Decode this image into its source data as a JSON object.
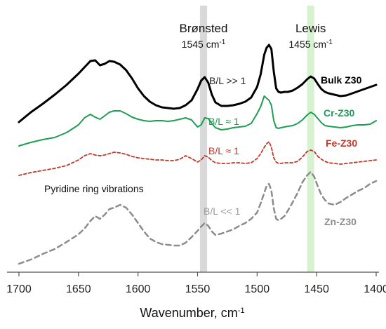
{
  "chart_data": {
    "type": "line",
    "xlabel": "Wavenumber, cm",
    "xlabel_sup": "-1",
    "xlim": [
      1700,
      1400
    ],
    "x_ticks": [
      1700,
      1650,
      1600,
      1550,
      1500,
      1450,
      1400
    ],
    "x_tick_labels": [
      "1700",
      "1650",
      "1600",
      "1550",
      "1500",
      "1450",
      "1400"
    ],
    "bands": [
      {
        "title": "Brønsted",
        "sub": "1545 cm",
        "sup": "-1",
        "center": 1545,
        "width": 6,
        "color": "#d9d9d9"
      },
      {
        "title": "Lewis",
        "sub": "1455 cm",
        "sup": "-1",
        "center": 1455,
        "width": 6,
        "color": "#d6f2d0"
      }
    ],
    "note": "Pyridine ring vibrations",
    "series": [
      {
        "name": "Bulk Z30",
        "ratio": "B/L >> 1",
        "color": "#000000",
        "dash": "",
        "width": 3,
        "ratio_color": "#222222",
        "x": [
          1700,
          1690,
          1680,
          1670,
          1660,
          1650,
          1645,
          1640,
          1636,
          1632,
          1628,
          1624,
          1620,
          1615,
          1610,
          1605,
          1600,
          1595,
          1590,
          1585,
          1580,
          1575,
          1570,
          1565,
          1560,
          1555,
          1550,
          1547,
          1544,
          1541,
          1538,
          1535,
          1530,
          1525,
          1520,
          1515,
          1510,
          1505,
          1500,
          1497,
          1494,
          1492,
          1490,
          1488,
          1486,
          1484,
          1482,
          1480,
          1477,
          1474,
          1470,
          1466,
          1462,
          1458,
          1455,
          1452,
          1449,
          1446,
          1443,
          1440,
          1435,
          1430,
          1425,
          1420,
          1415,
          1410,
          1405,
          1400
        ],
        "y": [
          174,
          160,
          148,
          135,
          121,
          105,
          96,
          87,
          86,
          93,
          91,
          87,
          88,
          92,
          100,
          112,
          126,
          137,
          145,
          150,
          153,
          154,
          155,
          154,
          150,
          143,
          127,
          115,
          110,
          118,
          135,
          146,
          151,
          151,
          150,
          148,
          145,
          139,
          124,
          106,
          78,
          68,
          64,
          70,
          102,
          126,
          131,
          132,
          131,
          131,
          129,
          125,
          120,
          113,
          109,
          112,
          120,
          127,
          131,
          133,
          135,
          137,
          136,
          133,
          130,
          127,
          124,
          121
        ]
      },
      {
        "name": "Cr-Z30",
        "ratio": "B/L ≈ 1",
        "color": "#1f9d55",
        "dash": "",
        "width": 2,
        "ratio_color": "#1f9d55",
        "x": [
          1700,
          1690,
          1680,
          1670,
          1660,
          1650,
          1645,
          1640,
          1636,
          1632,
          1628,
          1624,
          1620,
          1615,
          1610,
          1605,
          1600,
          1595,
          1590,
          1585,
          1580,
          1575,
          1570,
          1565,
          1560,
          1555,
          1550,
          1547,
          1544,
          1541,
          1538,
          1535,
          1530,
          1525,
          1520,
          1515,
          1510,
          1505,
          1500,
          1497,
          1494,
          1492,
          1490,
          1488,
          1486,
          1484,
          1482,
          1480,
          1477,
          1474,
          1470,
          1466,
          1462,
          1458,
          1455,
          1452,
          1449,
          1446,
          1443,
          1440,
          1435,
          1430,
          1425,
          1420,
          1415,
          1410,
          1405,
          1400
        ],
        "y": [
          208,
          203,
          199,
          196,
          189,
          178,
          168,
          163,
          167,
          170,
          165,
          160,
          158,
          158,
          162,
          167,
          170,
          172,
          173,
          172,
          172,
          173,
          172,
          170,
          168,
          171,
          181,
          178,
          168,
          169,
          176,
          182,
          185,
          184,
          182,
          181,
          180,
          176,
          162,
          152,
          137,
          140,
          143,
          150,
          172,
          182,
          183,
          182,
          181,
          180,
          179,
          176,
          171,
          164,
          160,
          163,
          169,
          175,
          179,
          180,
          181,
          182,
          181,
          179,
          178,
          178,
          177,
          172
        ]
      },
      {
        "name": "Fe-Z30",
        "ratio": "B/L ≈ 1",
        "color": "#c0392b",
        "dash": "4 3",
        "width": 1.8,
        "ratio_color": "#c0392b",
        "x": [
          1700,
          1690,
          1680,
          1670,
          1660,
          1650,
          1645,
          1640,
          1636,
          1632,
          1628,
          1624,
          1620,
          1615,
          1610,
          1605,
          1600,
          1595,
          1590,
          1585,
          1580,
          1575,
          1570,
          1565,
          1560,
          1555,
          1550,
          1547,
          1544,
          1541,
          1538,
          1535,
          1530,
          1525,
          1520,
          1515,
          1510,
          1505,
          1500,
          1497,
          1494,
          1492,
          1490,
          1488,
          1486,
          1484,
          1482,
          1480,
          1477,
          1474,
          1470,
          1466,
          1462,
          1458,
          1455,
          1452,
          1449,
          1446,
          1443,
          1440,
          1435,
          1430,
          1425,
          1420,
          1415,
          1410,
          1405,
          1400
        ],
        "y": [
          250,
          246,
          243,
          240,
          236,
          228,
          222,
          219,
          221,
          222,
          221,
          219,
          217,
          218,
          220,
          223,
          225,
          226,
          227,
          228,
          228,
          229,
          229,
          227,
          222,
          226,
          231,
          228,
          222,
          224,
          229,
          232,
          233,
          233,
          232,
          232,
          233,
          232,
          226,
          219,
          210,
          205,
          202,
          210,
          225,
          231,
          233,
          233,
          232,
          232,
          232,
          230,
          224,
          216,
          214,
          216,
          223,
          227,
          230,
          232,
          233,
          234,
          233,
          232,
          231,
          230,
          229,
          228
        ]
      },
      {
        "name": "Zn-Z30",
        "ratio": "B/L << 1",
        "color": "#8c8c8c",
        "dash": "7 5",
        "width": 2.5,
        "ratio_color": "#9a9a9a",
        "x": [
          1700,
          1690,
          1680,
          1670,
          1660,
          1650,
          1645,
          1640,
          1636,
          1632,
          1628,
          1624,
          1620,
          1615,
          1610,
          1605,
          1600,
          1595,
          1590,
          1585,
          1580,
          1575,
          1570,
          1565,
          1560,
          1555,
          1550,
          1547,
          1544,
          1541,
          1538,
          1535,
          1530,
          1525,
          1520,
          1515,
          1510,
          1505,
          1500,
          1497,
          1494,
          1492,
          1490,
          1488,
          1486,
          1484,
          1482,
          1480,
          1477,
          1474,
          1470,
          1466,
          1462,
          1458,
          1455,
          1452,
          1449,
          1446,
          1443,
          1440,
          1435,
          1430,
          1425,
          1420,
          1415,
          1410,
          1405,
          1400
        ],
        "y": [
          376,
          370,
          362,
          355,
          345,
          334,
          326,
          315,
          308,
          312,
          306,
          298,
          296,
          292,
          296,
          306,
          318,
          330,
          340,
          345,
          348,
          349,
          350,
          350,
          346,
          338,
          329,
          323,
          318,
          322,
          330,
          335,
          333,
          330,
          327,
          322,
          318,
          312,
          303,
          290,
          275,
          265,
          262,
          272,
          297,
          312,
          314,
          312,
          308,
          300,
          288,
          275,
          260,
          250,
          245,
          252,
          266,
          278,
          285,
          290,
          292,
          288,
          282,
          277,
          272,
          268,
          262,
          258
        ]
      }
    ]
  }
}
